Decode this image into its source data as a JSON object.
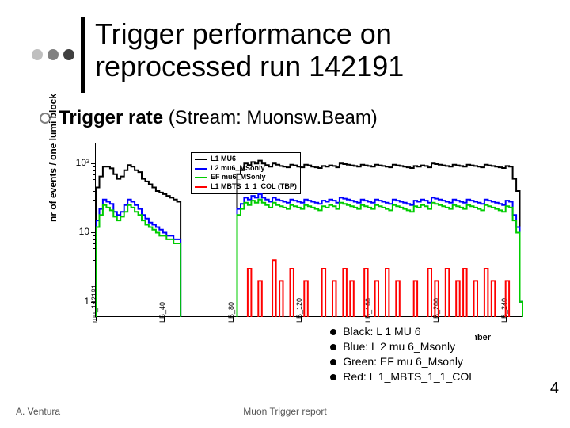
{
  "decoration": {
    "dot_colors": [
      "#bfbfbf",
      "#808080",
      "#404040"
    ],
    "vbar_color": "#000000"
  },
  "title": {
    "line1": "Trigger performance on",
    "line2": "reprocessed run 142191"
  },
  "subtitle": {
    "label_bold": "Trigger rate",
    "label_rest": " (Stream: Muonsw.Beam)"
  },
  "chart": {
    "type": "step-histogram",
    "ylabel": "nr of events / one lumi block",
    "xlabel_right": "Lumi block number",
    "yscale": "log",
    "ylim": [
      0.6,
      200
    ],
    "yticks": [
      {
        "v": 1,
        "label": "1"
      },
      {
        "v": 10,
        "label": "10"
      },
      {
        "v": 100,
        "label": "10²"
      }
    ],
    "xlim": [
      0,
      250
    ],
    "xticks": [
      {
        "v": 0,
        "label": "run_142191"
      },
      {
        "v": 40,
        "label": "LB_40"
      },
      {
        "v": 80,
        "label": "LB_80"
      },
      {
        "v": 120,
        "label": "LB_120"
      },
      {
        "v": 160,
        "label": "LB_160"
      },
      {
        "v": 200,
        "label": "LB_200"
      },
      {
        "v": 240,
        "label": "LB_240"
      }
    ],
    "gap_region": [
      50,
      80
    ],
    "internal_legend": [
      {
        "color": "#000000",
        "label": "L1 MU6"
      },
      {
        "color": "#0000ff",
        "label": "L2 mu6_MSonly"
      },
      {
        "color": "#00cc00",
        "label": "EF mu6_MSonly"
      },
      {
        "color": "#ff0000",
        "label": "L1 MBTS_1_1_COL (TBP)"
      }
    ],
    "series": [
      {
        "name": "L1 MU6",
        "color": "#000000",
        "line_width": 2,
        "values": [
          45,
          65,
          90,
          90,
          85,
          70,
          60,
          65,
          80,
          95,
          90,
          80,
          75,
          60,
          55,
          50,
          45,
          40,
          38,
          36,
          34,
          32,
          30,
          28,
          0,
          0,
          0,
          0,
          0,
          0,
          0,
          0,
          0,
          0,
          0,
          0,
          0,
          0,
          0,
          0,
          70,
          80,
          100,
          95,
          105,
          100,
          110,
          100,
          95,
          90,
          100,
          96,
          92,
          90,
          88,
          96,
          94,
          90,
          88,
          96,
          94,
          90,
          88,
          86,
          92,
          90,
          94,
          92,
          88,
          100,
          98,
          96,
          94,
          92,
          90,
          96,
          94,
          92,
          90,
          96,
          94,
          92,
          90,
          88,
          96,
          94,
          92,
          90,
          88,
          86,
          92,
          90,
          94,
          92,
          88,
          100,
          98,
          96,
          94,
          92,
          90,
          96,
          94,
          92,
          90,
          96,
          94,
          92,
          90,
          88,
          96,
          94,
          92,
          90,
          88,
          86,
          92,
          90,
          60,
          40,
          1
        ]
      },
      {
        "name": "L2 mu6_MSonly",
        "color": "#0000ff",
        "line_width": 2,
        "values": [
          15,
          22,
          30,
          28,
          26,
          20,
          18,
          20,
          25,
          30,
          28,
          25,
          22,
          18,
          16,
          14,
          13,
          12,
          11,
          10,
          9,
          9,
          8,
          8,
          0,
          0,
          0,
          0,
          0,
          0,
          0,
          0,
          0,
          0,
          0,
          0,
          0,
          0,
          0,
          0,
          22,
          26,
          32,
          30,
          34,
          32,
          36,
          32,
          30,
          28,
          32,
          30,
          29,
          28,
          27,
          30,
          29,
          28,
          27,
          30,
          29,
          28,
          27,
          26,
          29,
          28,
          30,
          29,
          27,
          32,
          31,
          30,
          29,
          28,
          27,
          30,
          29,
          28,
          27,
          30,
          29,
          28,
          27,
          26,
          30,
          29,
          28,
          27,
          26,
          25,
          29,
          28,
          30,
          29,
          27,
          32,
          31,
          30,
          29,
          28,
          27,
          30,
          29,
          28,
          27,
          30,
          29,
          28,
          27,
          26,
          30,
          29,
          28,
          27,
          26,
          25,
          29,
          28,
          18,
          12,
          1
        ]
      },
      {
        "name": "EF mu6_MSonly",
        "color": "#00cc00",
        "line_width": 2,
        "values": [
          12,
          18,
          25,
          23,
          21,
          17,
          15,
          17,
          20,
          25,
          23,
          20,
          18,
          15,
          13,
          12,
          11,
          10,
          9,
          9,
          8,
          8,
          7,
          7,
          0,
          0,
          0,
          0,
          0,
          0,
          0,
          0,
          0,
          0,
          0,
          0,
          0,
          0,
          0,
          0,
          18,
          22,
          27,
          25,
          29,
          27,
          30,
          27,
          25,
          23,
          27,
          25,
          24,
          23,
          22,
          25,
          24,
          23,
          22,
          25,
          24,
          23,
          22,
          21,
          24,
          23,
          25,
          24,
          22,
          27,
          26,
          25,
          24,
          23,
          22,
          25,
          24,
          23,
          22,
          25,
          24,
          23,
          22,
          21,
          25,
          24,
          23,
          22,
          21,
          20,
          24,
          23,
          25,
          24,
          22,
          27,
          26,
          25,
          24,
          23,
          22,
          25,
          24,
          23,
          22,
          25,
          24,
          23,
          22,
          21,
          25,
          24,
          23,
          22,
          21,
          20,
          24,
          23,
          15,
          10,
          1
        ]
      },
      {
        "name": "L1 MBTS_1_1_COL",
        "color": "#ff0000",
        "line_width": 2,
        "values": [
          0,
          0,
          0,
          0,
          0,
          0,
          0,
          0,
          0,
          0,
          0,
          0,
          0,
          0,
          0,
          0,
          0,
          0,
          0,
          0,
          0,
          0,
          0,
          0,
          0,
          0,
          0,
          0,
          0,
          0,
          0,
          0,
          0,
          0,
          0,
          0,
          0,
          0,
          0,
          0,
          0,
          0,
          0,
          3,
          0,
          0,
          2,
          0,
          0,
          0,
          4,
          0,
          2,
          0,
          0,
          3,
          0,
          0,
          0,
          2,
          0,
          0,
          0,
          0,
          3,
          0,
          0,
          2,
          0,
          0,
          3,
          0,
          2,
          0,
          0,
          0,
          3,
          0,
          0,
          2,
          0,
          0,
          3,
          0,
          0,
          2,
          0,
          0,
          0,
          0,
          2,
          0,
          0,
          0,
          3,
          0,
          2,
          0,
          0,
          3,
          0,
          0,
          2,
          0,
          3,
          0,
          0,
          2,
          0,
          0,
          3,
          0,
          2,
          0,
          0,
          0,
          2,
          0,
          0,
          0,
          0
        ]
      }
    ]
  },
  "text_legend": [
    {
      "label": "Black: L 1 MU 6"
    },
    {
      "label": "Blue: L 2 mu 6_Msonly"
    },
    {
      "label": "Green: EF mu 6_Msonly"
    },
    {
      "label": "Red: L 1_MBTS_1_1_COL"
    }
  ],
  "footer": {
    "left": "A. Ventura",
    "center": "Muon Trigger report",
    "page": "4"
  }
}
